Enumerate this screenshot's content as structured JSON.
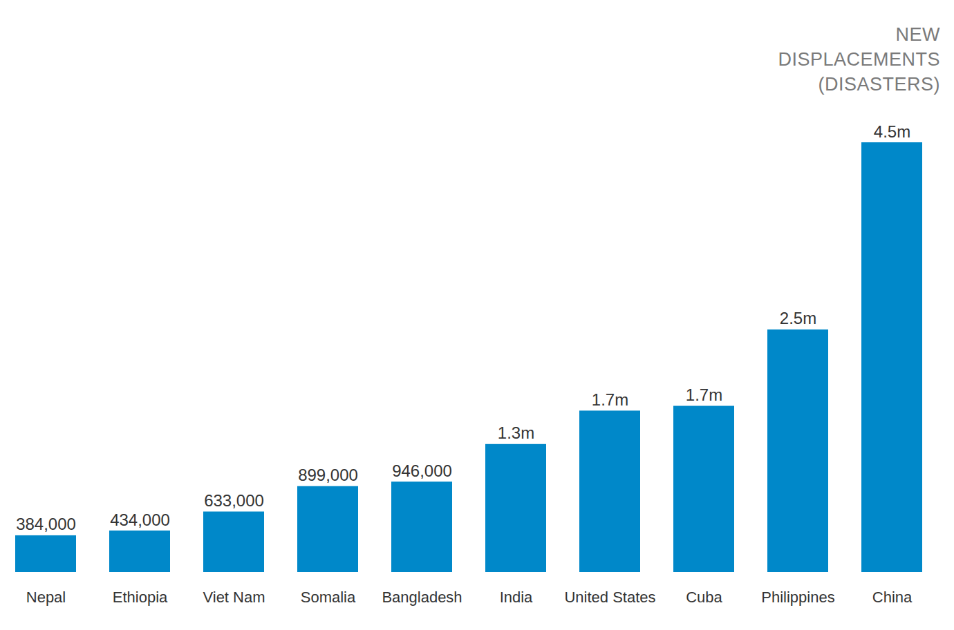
{
  "chart_data": {
    "type": "bar",
    "title": "NEW DISPLACEMENTS (DISASTERS)",
    "categories": [
      "Nepal",
      "Ethiopia",
      "Viet Nam",
      "Somalia",
      "Bangladesh",
      "India",
      "United States",
      "Cuba",
      "Philippines",
      "China"
    ],
    "values": [
      384000,
      434000,
      633000,
      899000,
      946000,
      1340000,
      1690000,
      1740000,
      2540000,
      4500000
    ],
    "value_labels": [
      "384,000",
      "434,000",
      "633,000",
      "899,000",
      "946,000",
      "1.3m",
      "1.7m",
      "1.7m",
      "2.5m",
      "4.5m"
    ],
    "color": "#0088c9",
    "data_labels": true,
    "tick_labels": "x"
  }
}
